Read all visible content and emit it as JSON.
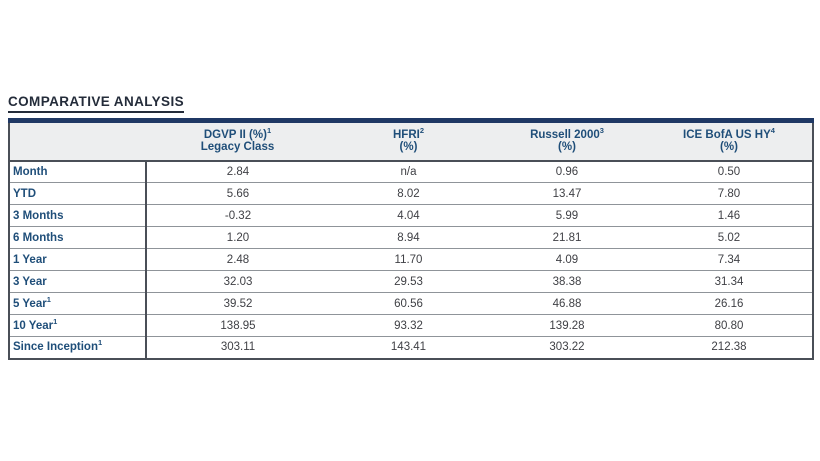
{
  "title": "COMPARATIVE ANALYSIS",
  "colors": {
    "accent_navy": "#1F4E79",
    "table_top_bar": "#1F3864",
    "header_background": "#EDEEEF",
    "value_text": "#3F4045",
    "title_text": "#242C3A"
  },
  "table": {
    "columns": [
      {
        "line1": "DGVP II (%)",
        "sup": "1",
        "line2": "Legacy Class"
      },
      {
        "line1": "HFRI",
        "sup": "2",
        "line2": "(%)"
      },
      {
        "line1": "Russell 2000",
        "sup": "3",
        "line2": "(%)"
      },
      {
        "line1": "ICE BofA US HY",
        "sup": "4",
        "line2": "(%)"
      }
    ],
    "rows": [
      {
        "label": "Month",
        "sup": "",
        "values": [
          "2.84",
          "n/a",
          "0.96",
          "0.50"
        ]
      },
      {
        "label": "YTD",
        "sup": "",
        "values": [
          "5.66",
          "8.02",
          "13.47",
          "7.80"
        ]
      },
      {
        "label": "3 Months",
        "sup": "",
        "values": [
          "-0.32",
          "4.04",
          "5.99",
          "1.46"
        ]
      },
      {
        "label": "6 Months",
        "sup": "",
        "values": [
          "1.20",
          "8.94",
          "21.81",
          "5.02"
        ]
      },
      {
        "label": "1 Year",
        "sup": "",
        "values": [
          "2.48",
          "11.70",
          "4.09",
          "7.34"
        ]
      },
      {
        "label": "3 Year",
        "sup": "",
        "values": [
          "32.03",
          "29.53",
          "38.38",
          "31.34"
        ]
      },
      {
        "label": "5 Year",
        "sup": "1",
        "values": [
          "39.52",
          "60.56",
          "46.88",
          "26.16"
        ]
      },
      {
        "label": "10 Year",
        "sup": "1",
        "values": [
          "138.95",
          "93.32",
          "139.28",
          "80.80"
        ]
      },
      {
        "label": "Since Inception",
        "sup": "1",
        "values": [
          "303.11",
          "143.41",
          "303.22",
          "212.38"
        ]
      }
    ]
  }
}
